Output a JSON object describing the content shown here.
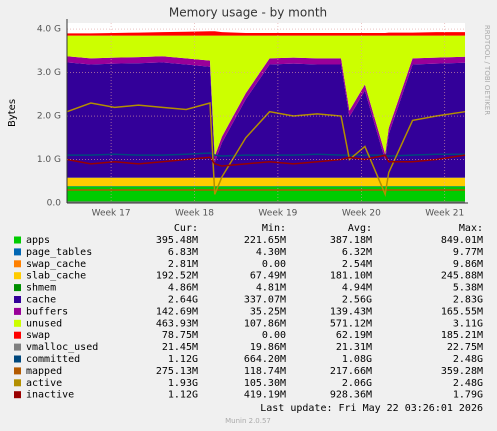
{
  "chart_data": {
    "type": "area",
    "title": "Memory usage - by month",
    "ylabel": "Bytes",
    "side_text": "RRDTOOL / TOBI OETIKER",
    "x": [
      0,
      2,
      4,
      6,
      8,
      10,
      12,
      12.4,
      13,
      15,
      17,
      19,
      21,
      23,
      23.7,
      25,
      26.7,
      27,
      29,
      31,
      33.4
    ],
    "xlim": [
      0,
      33.4
    ],
    "xticks": [
      {
        "value": 3.7,
        "label": "Week 17"
      },
      {
        "value": 10.7,
        "label": "Week 18"
      },
      {
        "value": 17.7,
        "label": "Week 19"
      },
      {
        "value": 24.7,
        "label": "Week 20"
      },
      {
        "value": 31.7,
        "label": "Week 21"
      }
    ],
    "ylim": [
      0,
      4.14
    ],
    "yticks": [
      {
        "value": 0,
        "label": "0.0"
      },
      {
        "value": 1,
        "label": "1.0 G"
      },
      {
        "value": 2,
        "label": "2.0 G"
      },
      {
        "value": 3,
        "label": "3.0 G"
      },
      {
        "value": 4,
        "label": "4.0 G"
      }
    ],
    "grid": true,
    "columns": [
      "Cur:",
      "Min:",
      "Avg:",
      "Max:"
    ],
    "series": [
      {
        "name": "apps",
        "color": "#00cc00",
        "style": "area",
        "values": [
          0.38,
          0.38,
          0.38,
          0.38,
          0.38,
          0.38,
          0.38,
          0.38,
          0.38,
          0.38,
          0.38,
          0.38,
          0.38,
          0.38,
          0.38,
          0.38,
          0.38,
          0.38,
          0.38,
          0.38,
          0.38
        ],
        "stats": [
          "395.48M",
          "221.65M",
          "387.18M",
          "849.01M"
        ]
      },
      {
        "name": "page_tables",
        "color": "#0066b3",
        "style": "area",
        "values": [
          0.007,
          0.007,
          0.007,
          0.007,
          0.007,
          0.007,
          0.007,
          0.007,
          0.007,
          0.007,
          0.007,
          0.007,
          0.007,
          0.007,
          0.007,
          0.007,
          0.007,
          0.007,
          0.007,
          0.007,
          0.007
        ],
        "stats": [
          "6.83M",
          "4.30M",
          "6.32M",
          "9.77M"
        ]
      },
      {
        "name": "swap_cache",
        "color": "#ff8000",
        "style": "area",
        "values": [
          0.003,
          0.003,
          0.003,
          0.003,
          0.003,
          0.003,
          0.003,
          0.003,
          0.003,
          0.003,
          0.003,
          0.003,
          0.003,
          0.003,
          0.003,
          0.003,
          0.003,
          0.003,
          0.003,
          0.003,
          0.003
        ],
        "stats": [
          "2.81M",
          "0.00",
          "2.54M",
          "9.86M"
        ]
      },
      {
        "name": "slab_cache",
        "color": "#ffcc00",
        "style": "area",
        "values": [
          0.19,
          0.19,
          0.19,
          0.19,
          0.19,
          0.19,
          0.19,
          0.19,
          0.19,
          0.19,
          0.19,
          0.19,
          0.19,
          0.19,
          0.19,
          0.19,
          0.19,
          0.19,
          0.19,
          0.19,
          0.19
        ],
        "stats": [
          "192.52M",
          "67.49M",
          "181.10M",
          "245.88M"
        ]
      },
      {
        "name": "shmem",
        "color": "#008f00",
        "style": "area",
        "values": [
          0.005,
          0.005,
          0.005,
          0.005,
          0.005,
          0.005,
          0.005,
          0.005,
          0.005,
          0.005,
          0.005,
          0.005,
          0.005,
          0.005,
          0.005,
          0.005,
          0.005,
          0.005,
          0.005,
          0.005,
          0.005
        ],
        "stats": [
          "4.86M",
          "4.81M",
          "4.94M",
          "5.38M"
        ]
      },
      {
        "name": "cache",
        "color": "#330099",
        "style": "area",
        "values": [
          2.65,
          2.6,
          2.62,
          2.63,
          2.65,
          2.6,
          2.55,
          0.35,
          0.8,
          1.8,
          2.6,
          2.62,
          2.6,
          2.6,
          1.4,
          2.0,
          0.4,
          1.0,
          2.6,
          2.62,
          2.64
        ],
        "stats": [
          "2.64G",
          "337.07M",
          "2.56G",
          "2.83G"
        ]
      },
      {
        "name": "buffers",
        "color": "#990099",
        "style": "area",
        "values": [
          0.14,
          0.14,
          0.14,
          0.14,
          0.14,
          0.14,
          0.14,
          0.14,
          0.14,
          0.14,
          0.14,
          0.14,
          0.14,
          0.14,
          0.14,
          0.14,
          0.14,
          0.14,
          0.14,
          0.14,
          0.14
        ],
        "stats": [
          "142.69M",
          "35.25M",
          "139.43M",
          "165.55M"
        ]
      },
      {
        "name": "unused",
        "color": "#ccff00",
        "style": "area",
        "values": [
          0.475,
          0.525,
          0.505,
          0.495,
          0.475,
          0.525,
          0.575,
          2.775,
          2.325,
          1.325,
          0.525,
          0.505,
          0.525,
          0.525,
          1.725,
          1.125,
          2.725,
          2.125,
          0.525,
          0.505,
          0.485
        ],
        "stats": [
          "463.93M",
          "107.86M",
          "571.12M",
          "3.11G"
        ]
      },
      {
        "name": "swap",
        "color": "#ff0000",
        "style": "area",
        "values": [
          0.05,
          0.05,
          0.06,
          0.07,
          0.08,
          0.09,
          0.1,
          0.1,
          0.08,
          0.06,
          0.06,
          0.06,
          0.06,
          0.06,
          0.06,
          0.06,
          0.06,
          0.07,
          0.07,
          0.08,
          0.08
        ],
        "stats": [
          "78.75M",
          "0.00",
          "62.19M",
          "185.21M"
        ]
      },
      {
        "name": "vmalloc_used",
        "color": "#808080",
        "style": "line",
        "values": [
          0.02,
          0.02,
          0.02,
          0.02,
          0.02,
          0.02,
          0.02,
          0.02,
          0.02,
          0.02,
          0.02,
          0.02,
          0.02,
          0.02,
          0.02,
          0.02,
          0.02,
          0.02,
          0.02,
          0.02,
          0.02
        ],
        "stats": [
          "21.45M",
          "19.86M",
          "21.31M",
          "22.75M"
        ]
      },
      {
        "name": "committed",
        "color": "#00487d",
        "style": "line",
        "values": [
          1.1,
          1.1,
          1.12,
          1.1,
          1.1,
          1.12,
          1.15,
          1.1,
          1.08,
          1.1,
          1.1,
          1.1,
          1.12,
          1.1,
          1.1,
          1.1,
          1.1,
          1.08,
          1.1,
          1.12,
          1.12
        ],
        "stats": [
          "1.12G",
          "664.20M",
          "1.08G",
          "2.48G"
        ]
      },
      {
        "name": "mapped",
        "color": "#b35a00",
        "style": "line",
        "values": [
          0.3,
          0.3,
          0.3,
          0.3,
          0.3,
          0.3,
          0.3,
          0.3,
          0.3,
          0.3,
          0.3,
          0.3,
          0.3,
          0.3,
          0.3,
          0.3,
          0.3,
          0.3,
          0.3,
          0.3,
          0.3
        ],
        "stats": [
          "275.13M",
          "118.74M",
          "217.66M",
          "359.28M"
        ]
      },
      {
        "name": "active",
        "color": "#b38f00",
        "style": "line",
        "values": [
          2.1,
          2.3,
          2.2,
          2.25,
          2.2,
          2.15,
          2.3,
          0.2,
          0.6,
          1.5,
          2.1,
          2.0,
          2.05,
          2.0,
          1.0,
          1.3,
          0.2,
          0.7,
          1.9,
          2.0,
          2.1
        ],
        "stats": [
          "1.93G",
          "105.30M",
          "2.06G",
          "2.48G"
        ]
      },
      {
        "name": "inactive",
        "color": "#990000",
        "style": "line",
        "values": [
          1.0,
          0.9,
          0.95,
          0.9,
          0.95,
          1.0,
          1.05,
          0.9,
          0.85,
          0.9,
          0.95,
          0.9,
          0.95,
          1.0,
          1.05,
          1.0,
          1.1,
          0.95,
          0.95,
          1.0,
          1.1
        ],
        "stats": [
          "1.12G",
          "419.19M",
          "928.36M",
          "1.79G"
        ]
      }
    ],
    "last_update": "Last update: Fri May 22 03:26:01 2026",
    "footer": "Munin 2.0.57"
  }
}
